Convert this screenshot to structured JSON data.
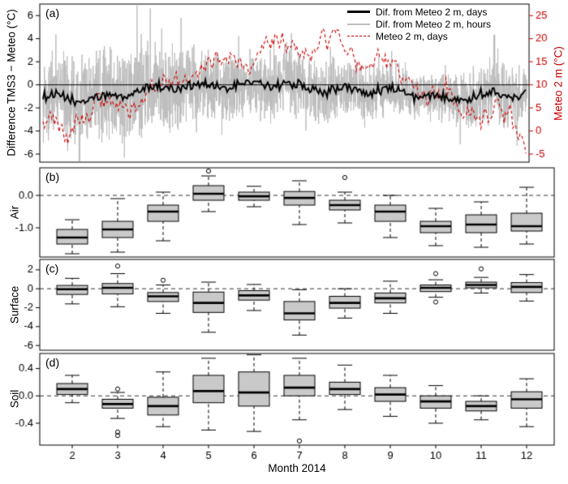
{
  "figure": {
    "background": "#ffffff"
  },
  "colors": {
    "black": "#000000",
    "hourly_gray": "#bdbdbd",
    "red": "#cc0000",
    "box_fill": "#c9c9c9",
    "ref_dash": "#333333",
    "frame": "#000000"
  },
  "x_axis": {
    "title": "Month 2014",
    "tick_labels": [
      "2",
      "3",
      "4",
      "5",
      "6",
      "7",
      "8",
      "9",
      "10",
      "11",
      "12"
    ]
  },
  "chart_data": [
    {
      "id": "a",
      "type": "line",
      "panel_label": "(a)",
      "ylabel_left": "Difference TMS3 − Meteo (°C)",
      "ylabel_right": "Meteo 2 m (°C)",
      "ylim_left": [
        -6.7,
        7.0
      ],
      "yticks_left": {
        "values": [
          -6,
          -4,
          -2,
          0,
          2,
          4,
          6
        ],
        "labels": [
          "-6",
          "-4",
          "-2",
          "0",
          "2",
          "4",
          "6"
        ]
      },
      "yticks_right": {
        "values": [
          -5,
          0,
          5,
          10,
          15,
          20,
          25
        ],
        "labels": [
          "-5",
          "0",
          "5",
          "10",
          "15",
          "20",
          "25"
        ]
      },
      "right_axis_transform": {
        "offset": 10,
        "scale": 2.5
      },
      "x_range_days": 334,
      "zero_line": 0,
      "legend": [
        {
          "label": "Dif. from Meteo 2 m, days",
          "color": "#000000",
          "line_style": "solid-thick"
        },
        {
          "label": "Dif. from Meteo 2 m, hours",
          "color": "#bdbdbd",
          "line_style": "solid"
        },
        {
          "label": "Meteo 2 m, days",
          "color": "#cc0000",
          "line_style": "dashed"
        }
      ],
      "series": {
        "anchor_months": [
          "Feb",
          "Mar",
          "Apr",
          "May",
          "Jun",
          "Jul",
          "Aug",
          "Sep",
          "Oct",
          "Nov",
          "Dec"
        ],
        "diff_days_monthly_mean": [
          -1.2,
          -1.0,
          -0.5,
          0.05,
          -0.02,
          -0.1,
          -0.3,
          -0.5,
          -0.95,
          -0.9,
          -0.9
        ],
        "diff_hours_monthly_amplitude": [
          4.5,
          5.0,
          4.5,
          4.0,
          3.2,
          3.8,
          3.2,
          3.0,
          2.2,
          2.6,
          3.5
        ],
        "meteo_days_monthly_mean": [
          1,
          5,
          9,
          13,
          16,
          19,
          18,
          14,
          9.5,
          5.5,
          2
        ]
      }
    },
    {
      "id": "b",
      "type": "boxplot",
      "panel_label": "(b)",
      "ylabel": "Air",
      "ylim": [
        -1.9,
        0.85
      ],
      "yticks": {
        "values": [
          0,
          -1
        ],
        "labels": [
          "0.0",
          "-1.0"
        ]
      },
      "ref_line": 0,
      "categories": [
        "2",
        "3",
        "4",
        "5",
        "6",
        "7",
        "8",
        "9",
        "10",
        "11",
        "12"
      ],
      "stats": [
        {
          "month": "2",
          "whislo": -1.8,
          "q1": -1.5,
          "med": -1.3,
          "q3": -1.05,
          "whishi": -0.75,
          "fliers": []
        },
        {
          "month": "3",
          "whislo": -1.75,
          "q1": -1.3,
          "med": -1.05,
          "q3": -0.8,
          "whishi": -0.1,
          "fliers": []
        },
        {
          "month": "4",
          "whislo": -1.4,
          "q1": -0.8,
          "med": -0.5,
          "q3": -0.3,
          "whishi": 0.1,
          "fliers": []
        },
        {
          "month": "5",
          "whislo": -0.5,
          "q1": -0.15,
          "med": 0.05,
          "q3": 0.3,
          "whishi": 0.6,
          "fliers": [
            0.75
          ]
        },
        {
          "month": "6",
          "whislo": -0.35,
          "q1": -0.15,
          "med": -0.03,
          "q3": 0.1,
          "whishi": 0.28,
          "fliers": []
        },
        {
          "month": "7",
          "whislo": -0.9,
          "q1": -0.3,
          "med": -0.08,
          "q3": 0.12,
          "whishi": 0.45,
          "fliers": []
        },
        {
          "month": "8",
          "whislo": -0.85,
          "q1": -0.45,
          "med": -0.3,
          "q3": -0.15,
          "whishi": 0.1,
          "fliers": [
            0.55
          ]
        },
        {
          "month": "9",
          "whislo": -1.3,
          "q1": -0.8,
          "med": -0.5,
          "q3": -0.3,
          "whishi": 0.0,
          "fliers": []
        },
        {
          "month": "10",
          "whislo": -1.55,
          "q1": -1.15,
          "med": -0.95,
          "q3": -0.8,
          "whishi": -0.4,
          "fliers": []
        },
        {
          "month": "11",
          "whislo": -1.6,
          "q1": -1.15,
          "med": -0.9,
          "q3": -0.6,
          "whishi": -0.2,
          "fliers": []
        },
        {
          "month": "12",
          "whislo": -1.5,
          "q1": -1.1,
          "med": -0.95,
          "q3": -0.55,
          "whishi": 0.25,
          "fliers": []
        }
      ]
    },
    {
      "id": "c",
      "type": "boxplot",
      "panel_label": "(c)",
      "ylabel": "Surface",
      "ylim": [
        -6.5,
        3.1
      ],
      "yticks": {
        "values": [
          2,
          0,
          -2,
          -4,
          -6
        ],
        "labels": [
          "2",
          "0",
          "-2",
          "-4",
          "-6"
        ]
      },
      "ref_line": 0,
      "categories": [
        "2",
        "3",
        "4",
        "5",
        "6",
        "7",
        "8",
        "9",
        "10",
        "11",
        "12"
      ],
      "stats": [
        {
          "month": "2",
          "whislo": -1.6,
          "q1": -0.6,
          "med": -0.05,
          "q3": 0.35,
          "whishi": 1.1,
          "fliers": []
        },
        {
          "month": "3",
          "whislo": -1.9,
          "q1": -0.55,
          "med": 0.1,
          "q3": 0.55,
          "whishi": 1.6,
          "fliers": [
            2.4
          ]
        },
        {
          "month": "4",
          "whislo": -2.6,
          "q1": -1.35,
          "med": -0.8,
          "q3": -0.4,
          "whishi": 0.4,
          "fliers": [
            0.9
          ]
        },
        {
          "month": "5",
          "whislo": -4.6,
          "q1": -2.5,
          "med": -1.5,
          "q3": -0.35,
          "whishi": 0.7,
          "fliers": []
        },
        {
          "month": "6",
          "whislo": -2.3,
          "q1": -1.2,
          "med": -0.7,
          "q3": -0.2,
          "whishi": 0.45,
          "fliers": []
        },
        {
          "month": "7",
          "whislo": -4.9,
          "q1": -3.3,
          "med": -2.6,
          "q3": -1.35,
          "whishi": -0.1,
          "fliers": []
        },
        {
          "month": "8",
          "whislo": -3.1,
          "q1": -2.05,
          "med": -1.5,
          "q3": -0.8,
          "whishi": 0.0,
          "fliers": []
        },
        {
          "month": "9",
          "whislo": -2.6,
          "q1": -1.5,
          "med": -1.0,
          "q3": -0.45,
          "whishi": 0.8,
          "fliers": []
        },
        {
          "month": "10",
          "whislo": -0.9,
          "q1": -0.3,
          "med": 0.1,
          "q3": 0.4,
          "whishi": 0.95,
          "fliers": [
            1.6,
            -1.4
          ]
        },
        {
          "month": "11",
          "whislo": -0.45,
          "q1": 0.1,
          "med": 0.4,
          "q3": 0.7,
          "whishi": 1.2,
          "fliers": [
            2.1
          ]
        },
        {
          "month": "12",
          "whislo": -1.3,
          "q1": -0.4,
          "med": 0.2,
          "q3": 0.65,
          "whishi": 1.5,
          "fliers": []
        }
      ]
    },
    {
      "id": "d",
      "type": "boxplot",
      "panel_label": "(d)",
      "ylabel": "Soil",
      "ylim": [
        -0.72,
        0.62
      ],
      "yticks": {
        "values": [
          0.4,
          0,
          -0.4
        ],
        "labels": [
          "0.4",
          "0.0",
          "-0.4"
        ]
      },
      "ref_line": 0,
      "categories": [
        "2",
        "3",
        "4",
        "5",
        "6",
        "7",
        "8",
        "9",
        "10",
        "11",
        "12"
      ],
      "stats": [
        {
          "month": "2",
          "whislo": -0.1,
          "q1": 0.02,
          "med": 0.1,
          "q3": 0.18,
          "whishi": 0.3,
          "fliers": []
        },
        {
          "month": "3",
          "whislo": -0.33,
          "q1": -0.18,
          "med": -0.12,
          "q3": -0.05,
          "whishi": 0.05,
          "fliers": [
            0.1,
            -0.53,
            -0.58
          ]
        },
        {
          "month": "4",
          "whislo": -0.45,
          "q1": -0.28,
          "med": -0.15,
          "q3": -0.02,
          "whishi": 0.35,
          "fliers": []
        },
        {
          "month": "5",
          "whislo": -0.5,
          "q1": -0.1,
          "med": 0.07,
          "q3": 0.3,
          "whishi": 0.55,
          "fliers": []
        },
        {
          "month": "6",
          "whislo": -0.52,
          "q1": -0.15,
          "med": 0.05,
          "q3": 0.35,
          "whishi": 0.6,
          "fliers": []
        },
        {
          "month": "7",
          "whislo": -0.35,
          "q1": 0.0,
          "med": 0.12,
          "q3": 0.3,
          "whishi": 0.55,
          "fliers": [
            -0.66
          ]
        },
        {
          "month": "8",
          "whislo": -0.2,
          "q1": 0.02,
          "med": 0.1,
          "q3": 0.2,
          "whishi": 0.45,
          "fliers": []
        },
        {
          "month": "9",
          "whislo": -0.3,
          "q1": -0.08,
          "med": 0.02,
          "q3": 0.12,
          "whishi": 0.3,
          "fliers": []
        },
        {
          "month": "10",
          "whislo": -0.4,
          "q1": -0.18,
          "med": -0.08,
          "q3": 0.0,
          "whishi": 0.15,
          "fliers": []
        },
        {
          "month": "11",
          "whislo": -0.35,
          "q1": -0.22,
          "med": -0.15,
          "q3": -0.08,
          "whishi": 0.0,
          "fliers": []
        },
        {
          "month": "12",
          "whislo": -0.45,
          "q1": -0.18,
          "med": -0.05,
          "q3": 0.06,
          "whishi": 0.25,
          "fliers": []
        }
      ]
    }
  ]
}
